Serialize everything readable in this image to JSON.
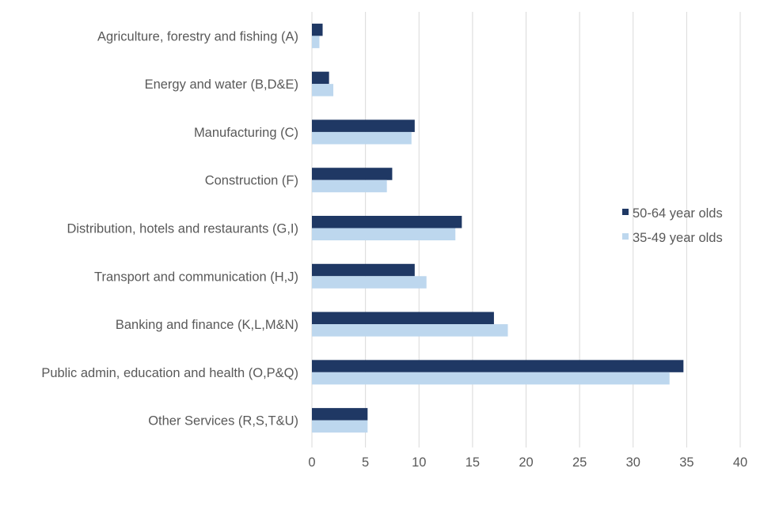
{
  "chart_data": {
    "type": "bar",
    "orientation": "horizontal",
    "title": "",
    "xlabel": "",
    "ylabel": "",
    "xlim": [
      0,
      40
    ],
    "x_ticks": [
      "0",
      "5",
      "10",
      "15",
      "20",
      "25",
      "30",
      "35",
      "40"
    ],
    "grid": true,
    "legend_position": "right",
    "categories": [
      "Agriculture, forestry and fishing (A)",
      "Energy and water (B,D&E)",
      "Manufacturing (C)",
      "Construction (F)",
      "Distribution, hotels and restaurants (G,I)",
      "Transport and communication (H,J)",
      "Banking and finance (K,L,M&N)",
      "Public admin, education and health (O,P&Q)",
      "Other Services (R,S,T&U)"
    ],
    "series": [
      {
        "name": "50-64 year olds",
        "color": "#1f3864",
        "values": [
          1.0,
          1.6,
          9.6,
          7.5,
          14.0,
          9.6,
          17.0,
          34.7,
          5.2
        ]
      },
      {
        "name": "35-49 year olds",
        "color": "#bdd7ee",
        "values": [
          0.7,
          2.0,
          9.3,
          7.0,
          13.4,
          10.7,
          18.3,
          33.4,
          5.2
        ]
      }
    ]
  }
}
